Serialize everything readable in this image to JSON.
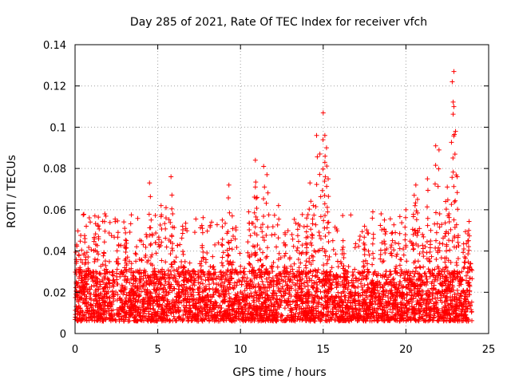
{
  "colors": {
    "series": "#ff0000",
    "grid": "#a0a0a0",
    "axis": "#000000",
    "background": "#ffffff"
  },
  "chart_data": {
    "type": "scatter",
    "title": "Day 285 of 2021, Rate Of TEC Index for receiver vfch",
    "xlabel": "GPS time / hours",
    "ylabel": "ROTI / TECUs",
    "xlim": [
      0,
      25
    ],
    "ylim": [
      0,
      0.14
    ],
    "xticks": [
      0,
      5,
      10,
      15,
      20,
      25
    ],
    "yticks": [
      0,
      0.02,
      0.04,
      0.06,
      0.08,
      0.1,
      0.12,
      0.14
    ],
    "xtick_labels": [
      "0",
      "5",
      "10",
      "15",
      "20",
      "25"
    ],
    "ytick_labels": [
      "0",
      "0.02",
      "0.04",
      "0.06",
      "0.08",
      "0.1",
      "0.12",
      "0.14"
    ],
    "grid": true,
    "marker": "+",
    "series": [
      {
        "name": "ROTI",
        "x": [
          0.1,
          0.3,
          0.6,
          1.2,
          1.4,
          1.8,
          2.6,
          3.0,
          3.1,
          4.3,
          4.5,
          4.6,
          5.2,
          5.5,
          5.8,
          5.9,
          6.5,
          7.7,
          8.9,
          9.3,
          9.5,
          10.5,
          10.9,
          10.9,
          11.0,
          11.4,
          11.6,
          12.3,
          12.7,
          13.5,
          14.0,
          14.2,
          14.4,
          14.6,
          14.8,
          15.0,
          15.1,
          15.1,
          15.2,
          15.3,
          16.2,
          17.5,
          18.0,
          18.5,
          18.7,
          20.0,
          20.5,
          20.6,
          20.7,
          21.0,
          21.3,
          21.5,
          21.8,
          22.0,
          22.4,
          22.5,
          22.6,
          22.8,
          22.9,
          22.9,
          23.0,
          23.1,
          23.5,
          23.8,
          23.9
        ],
        "y": [
          0.043,
          0.032,
          0.046,
          0.057,
          0.052,
          0.058,
          0.049,
          0.051,
          0.045,
          0.048,
          0.073,
          0.055,
          0.062,
          0.061,
          0.076,
          0.058,
          0.052,
          0.051,
          0.055,
          0.072,
          0.057,
          0.059,
          0.084,
          0.071,
          0.066,
          0.081,
          0.077,
          0.062,
          0.048,
          0.053,
          0.056,
          0.073,
          0.062,
          0.096,
          0.087,
          0.107,
          0.096,
          0.083,
          0.09,
          0.075,
          0.045,
          0.052,
          0.059,
          0.058,
          0.055,
          0.06,
          0.067,
          0.072,
          0.065,
          0.048,
          0.075,
          0.05,
          0.091,
          0.089,
          0.064,
          0.071,
          0.058,
          0.122,
          0.127,
          0.11,
          0.098,
          0.076,
          0.041,
          0.05,
          0.034
        ]
      }
    ],
    "baseline_band": {
      "x_from": 0,
      "x_to": 24,
      "y_low": 0.006,
      "y_high": 0.03
    }
  }
}
